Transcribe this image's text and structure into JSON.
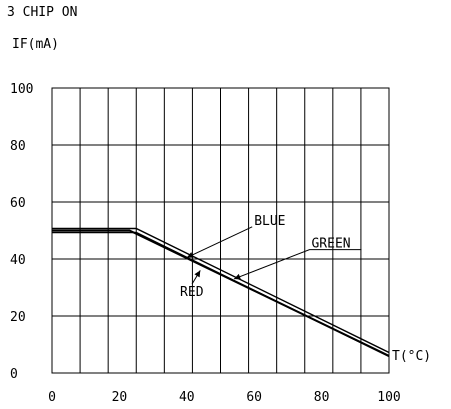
{
  "header": {
    "line1": "3 CHIP ON",
    "line2": "IF(mA)"
  },
  "chart_data": {
    "type": "line",
    "title": "",
    "xlabel": "T(°C)",
    "ylabel": "IF(mA)",
    "xlim": [
      0,
      100
    ],
    "ylim": [
      0,
      100
    ],
    "x_ticks": [
      0,
      20,
      40,
      60,
      80,
      100
    ],
    "y_ticks": [
      0,
      20,
      40,
      60,
      80,
      100
    ],
    "x_tick_labels": [
      "0",
      "20",
      "40",
      "60",
      "80",
      "100"
    ],
    "y_tick_labels": [
      "0",
      "20",
      "40",
      "60",
      "80",
      "100"
    ],
    "grid": true,
    "grid_x_step": 8.33,
    "grid_y_step": 20,
    "series": [
      {
        "name": "RED",
        "x": [
          0,
          23,
          100
        ],
        "y": [
          50,
          50,
          6
        ]
      },
      {
        "name": "BLUE",
        "x": [
          0,
          25,
          100
        ],
        "y": [
          50,
          50,
          6.5
        ]
      },
      {
        "name": "GREEN",
        "x": [
          0,
          25,
          100
        ],
        "y": [
          50,
          50,
          6.5
        ]
      }
    ],
    "annotations": [
      {
        "text": "BLUE",
        "series": "BLUE",
        "x": 40,
        "y": 40.5,
        "text_x": 60,
        "text_y": 52
      },
      {
        "text": "GREEN",
        "series": "GREEN",
        "x": 54,
        "y": 33,
        "text_x": 77,
        "text_y": 44
      },
      {
        "text": "RED",
        "series": "RED",
        "x": 44,
        "y": 36,
        "text_x": 38,
        "text_y": 27
      }
    ]
  }
}
